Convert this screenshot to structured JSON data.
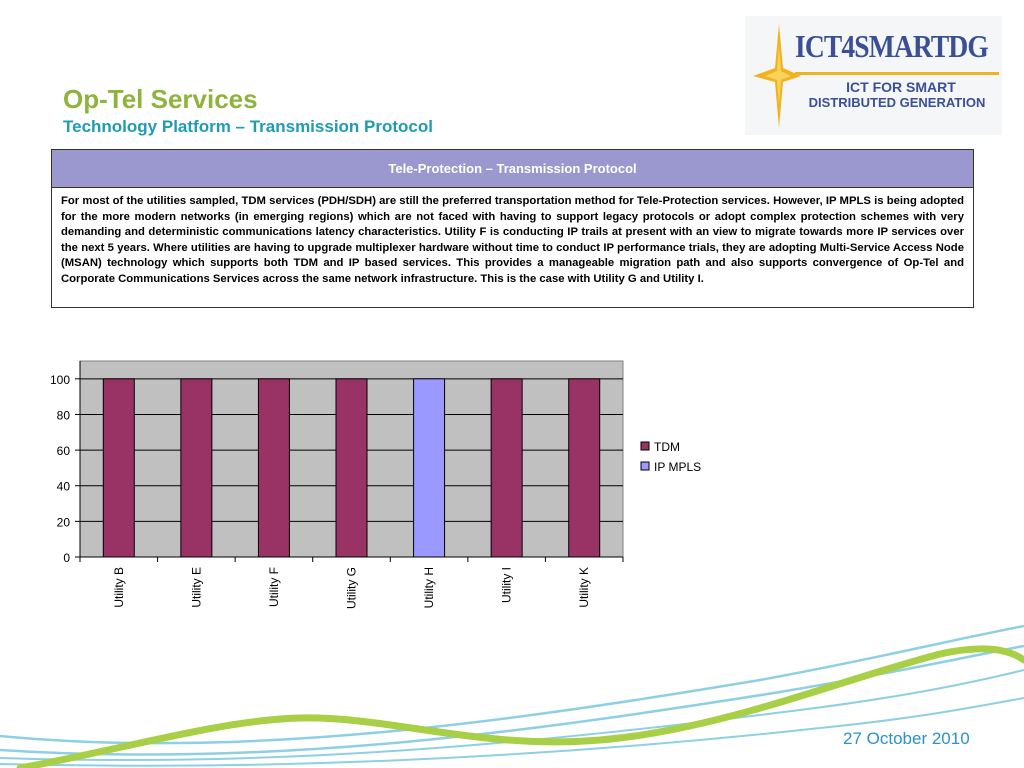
{
  "header": {
    "title": "Op-Tel Services",
    "subtitle": "Technology Platform – Transmission Protocol"
  },
  "logo": {
    "name": "ICT4SMARTDG",
    "tagline_line1": "ICT FOR SMART",
    "tagline_line2": "DISTRIBUTED GENERATION"
  },
  "info_box": {
    "heading": "Tele-Protection – Transmission Protocol",
    "body": "For most of the utilities sampled, TDM services (PDH/SDH) are still the preferred transportation method for Tele-Protection services. However, IP MPLS is being adopted for the more modern networks (in emerging regions) which are not faced with having to support legacy protocols or adopt complex protection schemes with very demanding and deterministic communications latency characteristics. Utility F is conducting IP trails at present with an view to migrate towards more IP services over the next 5 years. Where utilities are having to upgrade multiplexer hardware without time to conduct IP performance trials, they are adopting Multi-Service Access Node (MSAN) technology which supports both TDM and IP based services. This provides a manageable migration path and also supports convergence of Op-Tel and Corporate Communications Services across the same network infrastructure. This is the case with Utility G and Utility I."
  },
  "chart_data": {
    "type": "bar",
    "categories": [
      "Utility B",
      "Utility E",
      "Utility F",
      "Utility G",
      "Utility H",
      "Utility I",
      "Utility K"
    ],
    "series": [
      {
        "name": "TDM",
        "color": "#993366",
        "values": [
          100,
          100,
          100,
          100,
          0,
          100,
          100
        ]
      },
      {
        "name": "IP MPLS",
        "color": "#9999ff",
        "values": [
          0,
          0,
          0,
          0,
          100,
          0,
          0
        ]
      }
    ],
    "ylim": [
      0,
      110
    ],
    "yticks": [
      0,
      20,
      40,
      60,
      80,
      100
    ],
    "grid": true,
    "plot_background": "#c0c0c0",
    "legend": "right",
    "stacked": true
  },
  "footer": {
    "date": "27 October 2010"
  },
  "colors": {
    "title": "#8fb43c",
    "subtitle": "#1f9bb5",
    "header_band": "#9b98cf",
    "date": "#2b93c6"
  }
}
